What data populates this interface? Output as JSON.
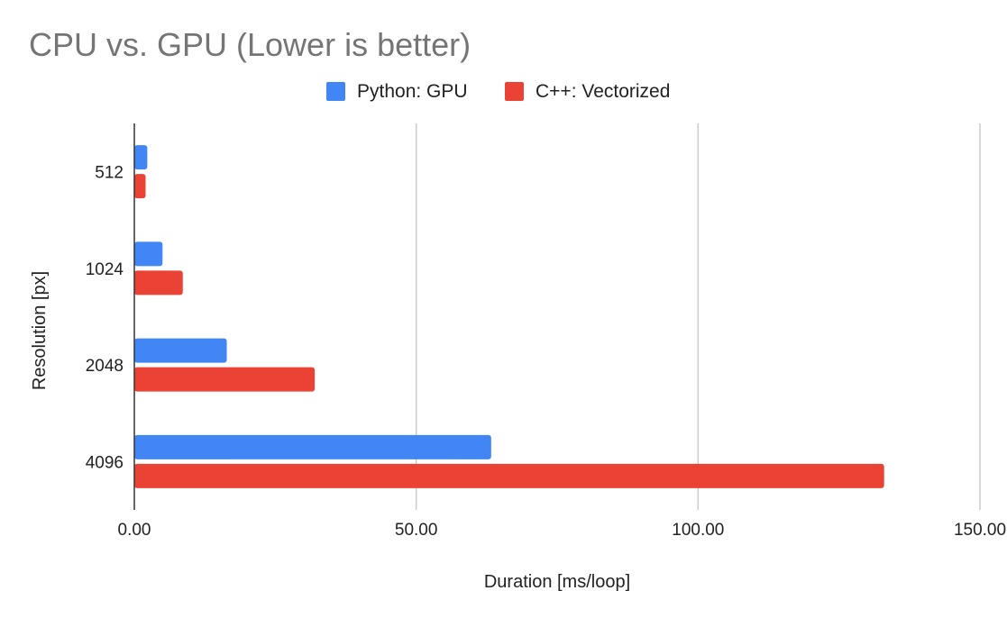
{
  "chart_data": {
    "type": "bar",
    "orientation": "horizontal",
    "title": "CPU vs. GPU (Lower is better)",
    "xlabel": "Duration [ms/loop]",
    "ylabel": "Resolution [px]",
    "categories": [
      "512",
      "1024",
      "2048",
      "4096"
    ],
    "series": [
      {
        "name": "Python: GPU",
        "color": "#4285f4",
        "values": [
          2.3,
          5.0,
          16.4,
          63.3
        ]
      },
      {
        "name": "C++: Vectorized",
        "color": "#ea4335",
        "values": [
          2.0,
          8.6,
          32.0,
          133.0
        ]
      }
    ],
    "xlim": [
      0,
      150
    ],
    "xticks": [
      "0.00",
      "50.00",
      "100.00",
      "150.00"
    ],
    "grid": true,
    "legend_position": "top"
  }
}
